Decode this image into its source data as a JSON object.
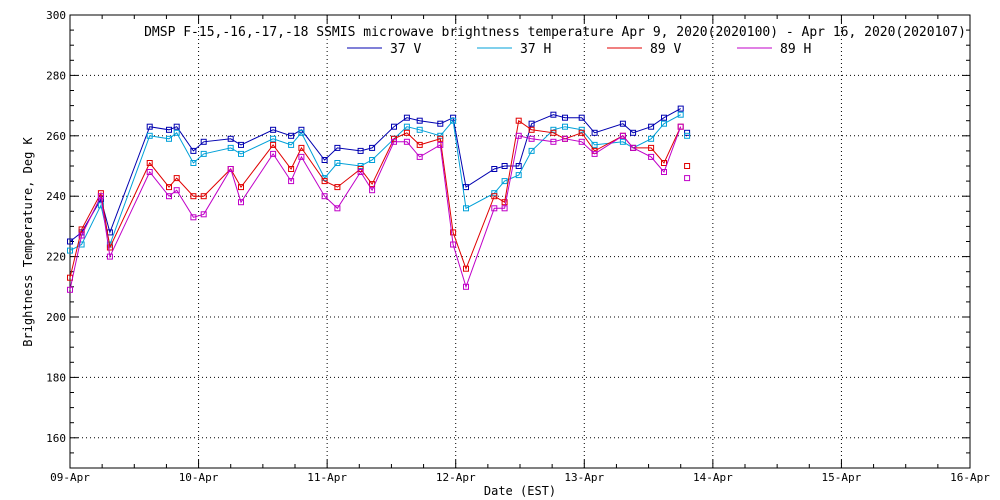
{
  "chart_data": {
    "type": "line",
    "title": "DMSP F-15,-16,-17,-18 SSMIS microwave brightness temperature Apr  9, 2020(2020100) - Apr 16, 2020(2020107)",
    "xlabel": "Date (EST)",
    "ylabel": "Brightness Temperature, Deg K",
    "xlim": [
      0,
      7
    ],
    "ylim": [
      150,
      300
    ],
    "x_ticks": [
      "09-Apr",
      "10-Apr",
      "11-Apr",
      "12-Apr",
      "13-Apr",
      "14-Apr",
      "15-Apr",
      "16-Apr"
    ],
    "y_ticks": [
      160,
      180,
      200,
      220,
      240,
      260,
      280,
      300
    ],
    "grid": true,
    "legend_position": "top-center",
    "x_units": "days since 09-Apr",
    "series": [
      {
        "name": "37 V",
        "color": "#0000b0",
        "x": [
          0.0,
          0.09,
          0.24,
          0.31,
          0.62,
          0.77,
          0.83,
          0.96,
          1.04,
          1.25,
          1.33,
          1.58,
          1.72,
          1.8,
          1.98,
          2.08,
          2.26,
          2.35,
          2.52,
          2.62,
          2.72,
          2.88,
          2.98,
          3.08,
          3.3,
          3.38,
          3.49,
          3.59,
          3.76,
          3.85,
          3.98,
          4.08,
          4.3,
          4.38,
          4.52,
          4.62,
          4.75
        ],
        "values": [
          225,
          228,
          239,
          228,
          263,
          262,
          263,
          255,
          258,
          259,
          257,
          262,
          260,
          262,
          252,
          256,
          255,
          256,
          263,
          266,
          265,
          264,
          266,
          243,
          249,
          250,
          250,
          264,
          267,
          266,
          266,
          261,
          264,
          261,
          263,
          266,
          269
        ]
      },
      {
        "name": "37 H",
        "color": "#00a0d8",
        "x": [
          0.0,
          0.09,
          0.24,
          0.31,
          0.62,
          0.77,
          0.83,
          0.96,
          1.04,
          1.25,
          1.33,
          1.58,
          1.72,
          1.8,
          1.98,
          2.08,
          2.26,
          2.35,
          2.52,
          2.62,
          2.72,
          2.88,
          2.98,
          3.08,
          3.3,
          3.38,
          3.49,
          3.59,
          3.76,
          3.85,
          3.98,
          4.08,
          4.3,
          4.38,
          4.52,
          4.62,
          4.75
        ],
        "values": [
          222,
          224,
          237,
          224,
          260,
          259,
          261,
          251,
          254,
          256,
          254,
          259,
          257,
          261,
          246,
          251,
          250,
          252,
          259,
          263,
          262,
          260,
          265,
          236,
          241,
          245,
          247,
          255,
          262,
          263,
          262,
          257,
          258,
          256,
          259,
          264,
          267
        ]
      },
      {
        "name": "89 V",
        "color": "#e00000",
        "x": [
          0.0,
          0.09,
          0.24,
          0.31,
          0.62,
          0.77,
          0.83,
          0.96,
          1.04,
          1.25,
          1.33,
          1.58,
          1.72,
          1.8,
          1.98,
          2.08,
          2.26,
          2.35,
          2.52,
          2.62,
          2.72,
          2.88,
          2.98,
          3.08,
          3.3,
          3.38,
          3.49,
          3.59,
          3.76,
          3.85,
          3.98,
          4.08,
          4.3,
          4.38,
          4.52,
          4.62,
          4.75
        ],
        "values": [
          213,
          229,
          241,
          223,
          251,
          243,
          246,
          240,
          240,
          249,
          243,
          257,
          249,
          256,
          245,
          243,
          249,
          244,
          259,
          261,
          257,
          259,
          228,
          216,
          240,
          238,
          265,
          262,
          261,
          259,
          261,
          255,
          260,
          256,
          256,
          251,
          263
        ]
      },
      {
        "name": "89 H",
        "color": "#c000c8",
        "x": [
          0.0,
          0.09,
          0.24,
          0.31,
          0.62,
          0.77,
          0.83,
          0.96,
          1.04,
          1.25,
          1.33,
          1.58,
          1.72,
          1.8,
          1.98,
          2.08,
          2.26,
          2.35,
          2.52,
          2.62,
          2.72,
          2.88,
          2.98,
          3.08,
          3.3,
          3.38,
          3.49,
          3.59,
          3.76,
          3.85,
          3.98,
          4.08,
          4.3,
          4.38,
          4.52,
          4.62,
          4.75
        ],
        "values": [
          209,
          227,
          240,
          220,
          248,
          240,
          242,
          233,
          234,
          249,
          238,
          254,
          245,
          253,
          240,
          236,
          248,
          242,
          258,
          258,
          253,
          257,
          224,
          210,
          236,
          236,
          260,
          259,
          258,
          259,
          258,
          254,
          260,
          256,
          253,
          248,
          263
        ]
      }
    ],
    "extra_points": {
      "x": [
        4.8,
        4.8,
        4.8,
        4.8
      ],
      "values": [
        261,
        260,
        250,
        246
      ],
      "series_index": [
        0,
        1,
        2,
        3
      ]
    }
  }
}
